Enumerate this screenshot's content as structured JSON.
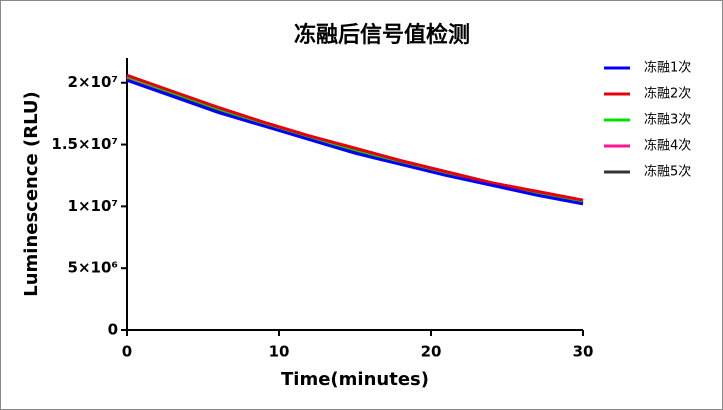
{
  "chart_data": {
    "type": "line",
    "title": "冻融后信号值检测",
    "x_label": "Time(minutes)",
    "y_label": "Luminescence (RLU)",
    "x": [
      0,
      3,
      6,
      9,
      12,
      15,
      18,
      21,
      24,
      27,
      30
    ],
    "xlim": [
      0,
      30
    ],
    "xticks": [
      0,
      10,
      20,
      30
    ],
    "ylim": [
      0,
      22000000
    ],
    "yticks": [
      0,
      {
        "value": 5000000,
        "label": "5×10⁶"
      },
      {
        "value": 10000000,
        "label": "1×10⁷"
      },
      {
        "value": 15000000,
        "label": "1.5×10⁷"
      },
      {
        "value": 20000000,
        "label": "2×10⁷"
      }
    ],
    "legend": "right",
    "series": [
      {
        "name": "冻融1次",
        "color": "#0000ff",
        "values": [
          20200000,
          18900000,
          17600000,
          16500000,
          15400000,
          14300000,
          13400000,
          12500000,
          11700000,
          10900000,
          10200000
        ]
      },
      {
        "name": "冻融2次",
        "color": "#e8000b",
        "values": [
          20600000,
          19300000,
          18000000,
          16800000,
          15700000,
          14700000,
          13700000,
          12800000,
          11900000,
          11200000,
          10500000
        ]
      },
      {
        "name": "冻融3次",
        "color": "#00e000",
        "values": [
          20500000,
          19200000,
          17900000,
          16700000,
          15600000,
          14600000,
          13600000,
          12700000,
          11900000,
          11100000,
          10400000
        ]
      },
      {
        "name": "冻融4次",
        "color": "#ff1493",
        "values": [
          20400000,
          19200000,
          18000000,
          16800000,
          15700000,
          14700000,
          13700000,
          12800000,
          11900000,
          11200000,
          10500000
        ]
      },
      {
        "name": "冻融5次",
        "color": "#333333",
        "values": [
          20300000,
          19000000,
          17700000,
          16600000,
          15500000,
          14500000,
          13500000,
          12600000,
          11800000,
          11000000,
          10300000
        ]
      }
    ]
  }
}
